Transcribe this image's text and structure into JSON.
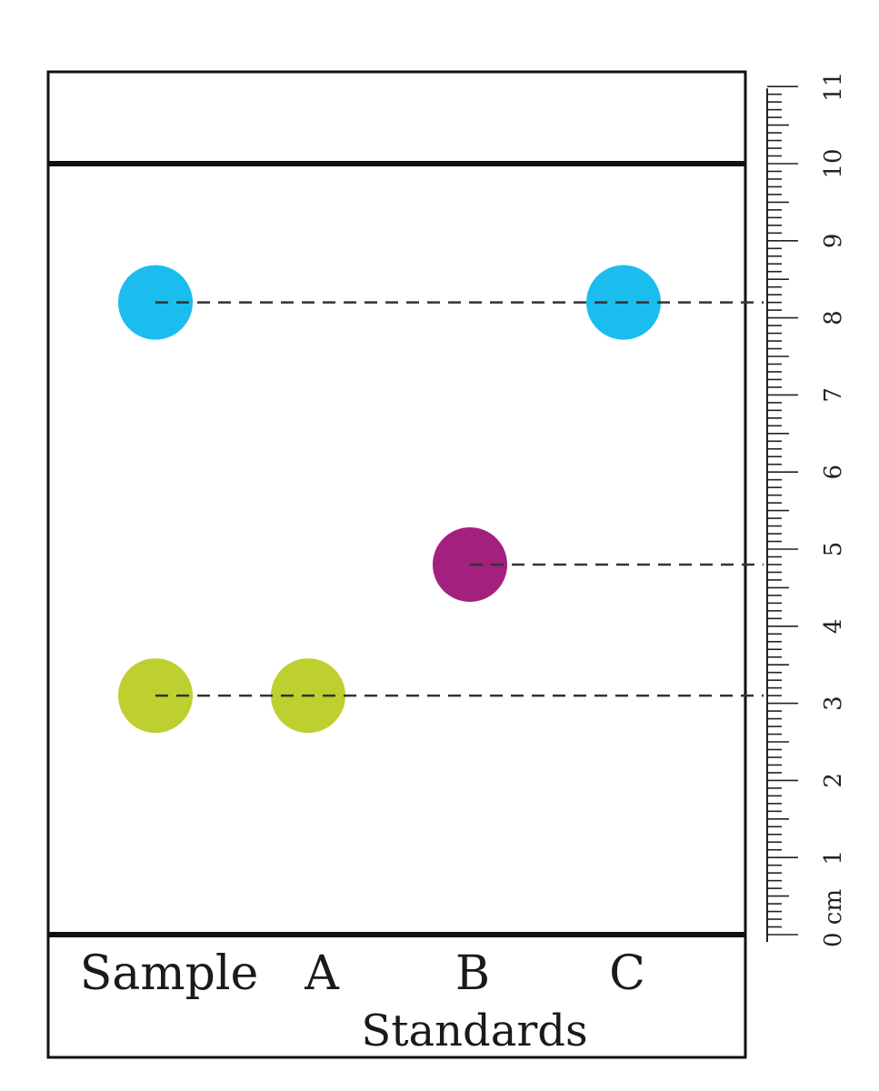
{
  "plate": {
    "lanes": [
      {
        "id": "sample",
        "label": "Sample"
      },
      {
        "id": "a",
        "label": "A"
      },
      {
        "id": "b",
        "label": "B"
      },
      {
        "id": "c",
        "label": "C"
      }
    ],
    "group_label": "Standards",
    "solvent_front_cm": 10,
    "origin_cm": 0,
    "spots": [
      {
        "lane": "sample",
        "distance_cm": 8.2,
        "color": "#1bbdef"
      },
      {
        "lane": "sample",
        "distance_cm": 3.1,
        "color": "#bdd02f"
      },
      {
        "lane": "a",
        "distance_cm": 3.1,
        "color": "#bdd02f"
      },
      {
        "lane": "b",
        "distance_cm": 4.8,
        "color": "#a3207e"
      },
      {
        "lane": "c",
        "distance_cm": 8.2,
        "color": "#1bbdef"
      }
    ],
    "guides_cm": [
      8.2,
      4.8,
      3.1
    ]
  },
  "ruler": {
    "unit": "cm",
    "min": 0,
    "max": 11,
    "labels": [
      "0 cm",
      "1",
      "2",
      "3",
      "4",
      "5",
      "6",
      "7",
      "8",
      "9",
      "10",
      "11"
    ]
  },
  "colors": {
    "line": "#111111",
    "dash": "#333333"
  }
}
